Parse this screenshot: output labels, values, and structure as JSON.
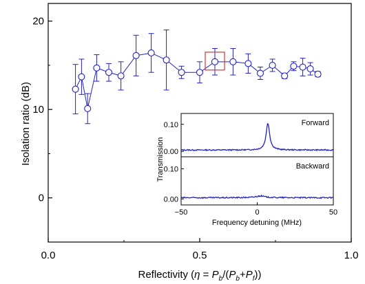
{
  "colors": {
    "series": "#2020c8",
    "highlight": "#e03030",
    "axis": "#000000"
  },
  "chart_data": [
    {
      "type": "line",
      "title": "",
      "xlabel_parts": [
        "Reflectivity (",
        "η",
        " = ",
        "P",
        "b",
        "/(",
        "P",
        "b",
        "+",
        "P",
        "f",
        "))"
      ],
      "ylabel": "Isolation ratio (dB)",
      "xlim": [
        0.0,
        1.0
      ],
      "ylim": [
        -5,
        22
      ],
      "xticks": [
        0.0,
        0.5,
        1.0
      ],
      "xtick_labels": [
        "0.0",
        "0.5",
        "1.0"
      ],
      "yticks": [
        0,
        10,
        20
      ],
      "ytick_labels": [
        "0",
        "10",
        "20"
      ],
      "grid": false,
      "marker": "open-circle",
      "series": [
        {
          "x": [
            0.09,
            0.11,
            0.13,
            0.16,
            0.2,
            0.24,
            0.29,
            0.34,
            0.39,
            0.44,
            0.5,
            0.55,
            0.61,
            0.66,
            0.7,
            0.74,
            0.78,
            0.81,
            0.84,
            0.865,
            0.89
          ],
          "y": [
            12.3,
            13.7,
            10.1,
            14.7,
            14.2,
            13.8,
            16.1,
            16.4,
            15.6,
            14.2,
            14.2,
            15.4,
            15.4,
            15.2,
            14.1,
            15.0,
            13.8,
            14.9,
            14.8,
            14.6,
            14.0
          ],
          "err": [
            2.8,
            2.0,
            1.7,
            1.5,
            1.0,
            1.6,
            2.3,
            2.2,
            3.4,
            0.7,
            1.2,
            1.5,
            1.5,
            1.1,
            0.7,
            0.7,
            0.3,
            0.5,
            1.0,
            0.7,
            0.3
          ]
        }
      ],
      "highlight": {
        "x": 0.55,
        "y": 15.4
      }
    },
    {
      "type": "line",
      "xlabel": "Frequency detuning (MHz)",
      "ylabel": "Transmission",
      "xlim": [
        -50,
        50
      ],
      "xticks": [
        -50,
        0,
        50
      ],
      "xtick_labels": [
        "−50",
        "0",
        "50"
      ],
      "panels": [
        {
          "label": "Forward",
          "ylim": [
            -0.02,
            0.14
          ],
          "yticks": [
            0.0,
            0.1
          ],
          "ytick_labels": [
            "0.00",
            "0.10"
          ],
          "baseline": 0.005,
          "peak_center": 7,
          "peak_height": 0.1,
          "peak_width": 1.4
        },
        {
          "label": "Backward",
          "ylim": [
            -0.02,
            0.14
          ],
          "yticks": [
            0.0,
            0.1
          ],
          "ytick_labels": [
            "0.00",
            "0.10"
          ],
          "baseline": 0.004,
          "peak_center": 2,
          "peak_height": 0.006,
          "peak_width": 3.5
        }
      ]
    }
  ]
}
